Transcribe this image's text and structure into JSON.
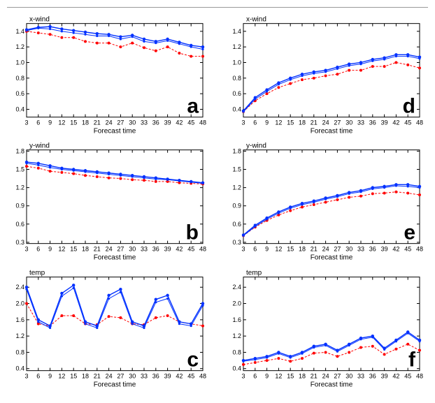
{
  "figure": {
    "background_color": "#ffffff",
    "divider_color": "#999999",
    "font_family": "Arial, sans-serif",
    "axis_color": "#000000",
    "tick_fontsize": 9,
    "label_fontsize": 10,
    "title_fontsize": 10,
    "letter_fontsize": 30,
    "letter_weight": "bold",
    "xlabel": "Forecast time",
    "x_ticks": [
      3,
      6,
      9,
      12,
      15,
      18,
      21,
      24,
      27,
      30,
      33,
      36,
      39,
      42,
      45,
      48
    ],
    "series_style": {
      "blue1": {
        "color": "#0030ff",
        "width": 1.4,
        "dash": "",
        "marker": "circle",
        "marker_size": 2.2,
        "marker_fill": "#0030ff"
      },
      "blue2": {
        "color": "#0030ff",
        "width": 1.0,
        "dash": "",
        "marker": "circle",
        "marker_size": 1.6,
        "marker_fill": "#0030ff"
      },
      "red": {
        "color": "#ff0000",
        "width": 1.0,
        "dash": "3,2",
        "marker": "circle",
        "marker_size": 2.0,
        "marker_fill": "#ff0000"
      }
    },
    "panels": [
      {
        "id": "a",
        "letter": "a",
        "title": "x-wind",
        "ylim": [
          0.3,
          1.5
        ],
        "yticks": [
          0.4,
          0.6,
          0.8,
          1.0,
          1.2,
          1.4
        ],
        "series": {
          "blue1": [
            1.42,
            1.45,
            1.46,
            1.43,
            1.41,
            1.39,
            1.37,
            1.36,
            1.33,
            1.35,
            1.3,
            1.27,
            1.3,
            1.26,
            1.22,
            1.2
          ],
          "blue2": [
            1.41,
            1.44,
            1.43,
            1.4,
            1.38,
            1.36,
            1.34,
            1.34,
            1.3,
            1.33,
            1.27,
            1.25,
            1.28,
            1.24,
            1.2,
            1.17
          ],
          "red": [
            1.4,
            1.38,
            1.36,
            1.32,
            1.32,
            1.27,
            1.25,
            1.25,
            1.2,
            1.25,
            1.19,
            1.15,
            1.2,
            1.12,
            1.08,
            1.08
          ]
        }
      },
      {
        "id": "d",
        "letter": "d",
        "title": "x-wind",
        "ylim": [
          0.3,
          1.5
        ],
        "yticks": [
          0.4,
          0.6,
          0.8,
          1.0,
          1.2,
          1.4
        ],
        "series": {
          "blue1": [
            0.38,
            0.55,
            0.65,
            0.74,
            0.8,
            0.85,
            0.88,
            0.9,
            0.94,
            0.98,
            1.0,
            1.04,
            1.06,
            1.1,
            1.1,
            1.07
          ],
          "blue2": [
            0.37,
            0.53,
            0.63,
            0.72,
            0.78,
            0.83,
            0.86,
            0.88,
            0.92,
            0.96,
            0.98,
            1.02,
            1.04,
            1.08,
            1.08,
            1.05
          ],
          "red": [
            0.37,
            0.51,
            0.6,
            0.68,
            0.73,
            0.78,
            0.8,
            0.83,
            0.85,
            0.9,
            0.9,
            0.95,
            0.95,
            1.0,
            0.97,
            0.93
          ]
        }
      },
      {
        "id": "b",
        "letter": "b",
        "title": "y-wind",
        "ylim": [
          0.28,
          1.82
        ],
        "yticks": [
          0.3,
          0.6,
          0.9,
          1.2,
          1.5,
          1.8
        ],
        "series": {
          "blue1": [
            1.62,
            1.6,
            1.56,
            1.52,
            1.5,
            1.48,
            1.46,
            1.44,
            1.42,
            1.4,
            1.38,
            1.36,
            1.34,
            1.32,
            1.3,
            1.28
          ],
          "blue2": [
            1.6,
            1.57,
            1.53,
            1.5,
            1.48,
            1.46,
            1.44,
            1.42,
            1.4,
            1.38,
            1.36,
            1.34,
            1.33,
            1.31,
            1.29,
            1.27
          ],
          "red": [
            1.55,
            1.52,
            1.47,
            1.45,
            1.43,
            1.4,
            1.38,
            1.36,
            1.35,
            1.33,
            1.32,
            1.3,
            1.3,
            1.28,
            1.27,
            1.26
          ]
        }
      },
      {
        "id": "e",
        "letter": "e",
        "title": "y-wind",
        "ylim": [
          0.28,
          1.82
        ],
        "yticks": [
          0.3,
          0.6,
          0.9,
          1.2,
          1.5,
          1.8
        ],
        "series": {
          "blue1": [
            0.42,
            0.58,
            0.7,
            0.8,
            0.88,
            0.94,
            0.98,
            1.03,
            1.07,
            1.12,
            1.15,
            1.2,
            1.22,
            1.25,
            1.25,
            1.22
          ],
          "blue2": [
            0.41,
            0.56,
            0.68,
            0.78,
            0.86,
            0.92,
            0.96,
            1.01,
            1.05,
            1.1,
            1.13,
            1.18,
            1.2,
            1.23,
            1.22,
            1.2
          ],
          "red": [
            0.41,
            0.55,
            0.66,
            0.75,
            0.82,
            0.88,
            0.92,
            0.96,
            1.0,
            1.04,
            1.06,
            1.1,
            1.11,
            1.13,
            1.11,
            1.08
          ]
        }
      },
      {
        "id": "c",
        "letter": "c",
        "title": "temp",
        "ylim": [
          0.35,
          2.65
        ],
        "yticks": [
          0.4,
          0.8,
          1.2,
          1.6,
          2.0,
          2.4
        ],
        "series": {
          "blue1": [
            2.4,
            1.6,
            1.45,
            2.25,
            2.45,
            1.55,
            1.45,
            2.2,
            2.35,
            1.55,
            1.45,
            2.1,
            2.2,
            1.55,
            1.5,
            2.0
          ],
          "blue2": [
            2.35,
            1.55,
            1.4,
            2.18,
            2.38,
            1.5,
            1.4,
            2.12,
            2.28,
            1.5,
            1.4,
            2.03,
            2.12,
            1.5,
            1.45,
            1.95
          ],
          "red": [
            2.0,
            1.5,
            1.45,
            1.7,
            1.7,
            1.5,
            1.48,
            1.68,
            1.65,
            1.5,
            1.48,
            1.65,
            1.7,
            1.55,
            1.5,
            1.45
          ]
        }
      },
      {
        "id": "f",
        "letter": "f",
        "title": "temp",
        "ylim": [
          0.35,
          2.65
        ],
        "yticks": [
          0.4,
          0.8,
          1.2,
          1.6,
          2.0,
          2.4
        ],
        "series": {
          "blue1": [
            0.6,
            0.65,
            0.7,
            0.8,
            0.7,
            0.8,
            0.95,
            1.0,
            0.85,
            1.0,
            1.15,
            1.2,
            0.9,
            1.1,
            1.3,
            1.1
          ],
          "blue2": [
            0.58,
            0.62,
            0.67,
            0.77,
            0.67,
            0.77,
            0.92,
            0.97,
            0.82,
            0.97,
            1.12,
            1.17,
            0.87,
            1.07,
            1.27,
            1.07
          ],
          "red": [
            0.5,
            0.55,
            0.6,
            0.65,
            0.58,
            0.65,
            0.78,
            0.8,
            0.7,
            0.8,
            0.92,
            0.95,
            0.75,
            0.88,
            1.0,
            0.85
          ]
        }
      }
    ]
  }
}
